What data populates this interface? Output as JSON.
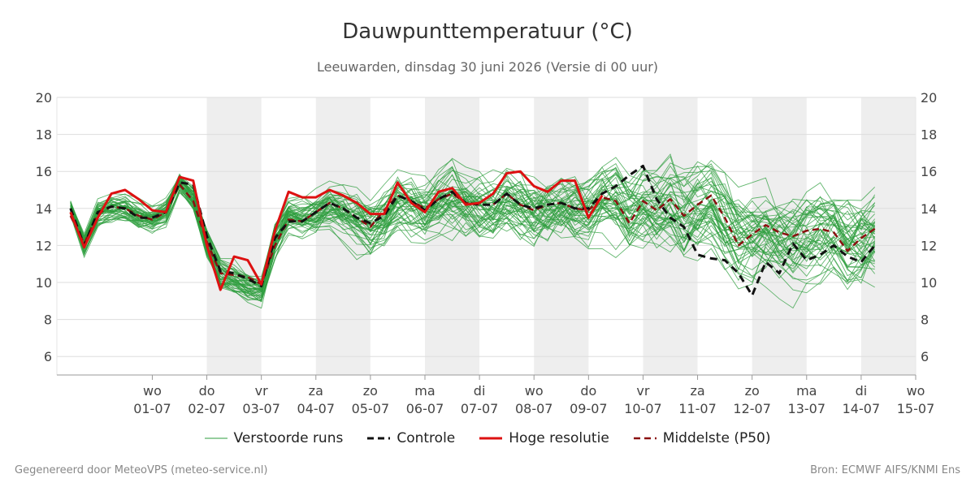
{
  "chart_data": {
    "type": "line",
    "title": "Dauwpunttemperatuur (°C)",
    "subtitle": "Leeuwarden, dinsdag 30 juni 2026 (Versie di 00 uur)",
    "ylim": [
      5,
      20
    ],
    "y_ticks": [
      6,
      8,
      10,
      12,
      14,
      16,
      18,
      20
    ],
    "x_range_days": [
      -1.75,
      14.0
    ],
    "grid": true,
    "legend_position": "bottom",
    "x_day_labels": [
      {
        "day": "wo",
        "date": "01-07"
      },
      {
        "day": "do",
        "date": "02-07"
      },
      {
        "day": "vr",
        "date": "03-07"
      },
      {
        "day": "za",
        "date": "04-07"
      },
      {
        "day": "zo",
        "date": "05-07"
      },
      {
        "day": "ma",
        "date": "06-07"
      },
      {
        "day": "di",
        "date": "07-07"
      },
      {
        "day": "wo",
        "date": "08-07"
      },
      {
        "day": "do",
        "date": "09-07"
      },
      {
        "day": "vr",
        "date": "10-07"
      },
      {
        "day": "za",
        "date": "11-07"
      },
      {
        "day": "zo",
        "date": "12-07"
      },
      {
        "day": "ma",
        "date": "13-07"
      },
      {
        "day": "di",
        "date": "14-07"
      },
      {
        "day": "wo",
        "date": "15-07"
      }
    ],
    "shaded_days": [
      "02-07",
      "04-07",
      "06-07",
      "08-07",
      "10-07",
      "12-07",
      "14-07"
    ],
    "series": [
      {
        "name": "Controle",
        "color": "#111111",
        "style": "dashed",
        "x_start": -1.5,
        "x_step": 0.25,
        "values": [
          14.0,
          12.0,
          13.8,
          14.1,
          14.0,
          13.5,
          13.5,
          13.8,
          15.4,
          15.3,
          12.5,
          10.6,
          10.5,
          10.2,
          9.8,
          12.4,
          13.3,
          13.3,
          13.8,
          14.3,
          14.0,
          13.5,
          13.2,
          13.6,
          14.7,
          14.4,
          13.9,
          14.5,
          14.9,
          14.3,
          14.2,
          14.2,
          14.8,
          14.2,
          14.0,
          14.2,
          14.3,
          14.0,
          14.0,
          14.8,
          15.2,
          15.8,
          16.3,
          14.5,
          13.5,
          13.0,
          11.5,
          11.3,
          11.2,
          10.5,
          9.3,
          11.1,
          10.5,
          12.1,
          11.2,
          11.5,
          12.0,
          11.4,
          11.1,
          12.0
        ]
      },
      {
        "name": "Hoge resolutie",
        "color": "#dd1111",
        "style": "solid",
        "x_start": -1.5,
        "x_step": 0.25,
        "values": [
          13.8,
          11.9,
          13.5,
          14.8,
          15.0,
          14.5,
          13.9,
          13.8,
          15.7,
          15.5,
          12.0,
          9.6,
          11.4,
          11.2,
          9.9,
          12.8,
          14.9,
          14.6,
          14.6,
          15.0,
          14.7,
          14.3,
          13.7,
          13.7,
          15.4,
          14.3,
          13.8,
          14.9,
          15.1,
          14.2,
          14.3,
          14.8,
          15.9,
          16.0,
          15.2,
          14.9,
          15.5,
          15.5,
          13.5,
          14.7
        ]
      },
      {
        "name": "Middelste (P50)",
        "color": "#8b1010",
        "style": "dashed",
        "x_start": -1.5,
        "x_step": 0.25,
        "values": [
          13.6,
          12.1,
          13.7,
          14.1,
          14.0,
          13.6,
          13.4,
          13.8,
          15.3,
          14.4,
          12.2,
          10.5,
          10.4,
          10.3,
          9.9,
          12.0,
          13.4,
          13.3,
          13.8,
          14.3,
          14.0,
          13.5,
          13.0,
          13.9,
          14.7,
          14.4,
          14.0,
          14.5,
          14.8,
          14.3,
          14.2,
          14.2,
          14.8,
          14.2,
          13.9,
          14.2,
          14.3,
          14.0,
          13.9,
          14.6,
          14.4,
          13.2,
          14.4,
          13.9,
          14.5,
          13.6,
          14.2,
          14.7,
          13.5,
          12.0,
          12.6,
          13.1,
          12.7,
          12.5,
          12.8,
          12.9,
          12.7,
          11.7,
          12.4,
          12.9
        ]
      }
    ],
    "ensemble": {
      "name": "Verstoorde runs",
      "color": "#2e9e3e",
      "members": 50,
      "x_start": -1.5,
      "x_step": 0.25,
      "anchor_values": [
        14.0,
        12.0,
        13.7,
        14.0,
        14.0,
        13.6,
        13.4,
        13.8,
        15.4,
        14.6,
        12.2,
        10.4,
        10.2,
        9.8,
        9.6,
        12.3,
        13.6,
        13.5,
        13.6,
        14.0,
        13.7,
        13.4,
        13.0,
        13.4,
        14.4,
        14.1,
        13.7,
        14.2,
        14.4,
        14.0,
        13.9,
        13.9,
        14.4,
        14.1,
        13.8,
        14.0,
        14.1,
        13.9,
        13.8,
        14.2,
        14.1,
        13.4,
        14.0,
        13.7,
        14.0,
        13.4,
        13.7,
        13.8,
        13.0,
        12.3,
        12.5,
        12.7,
        12.5,
        12.4,
        12.6,
        12.6,
        12.5,
        12.1,
        12.4,
        12.6
      ],
      "spread_values": [
        0.6,
        0.8,
        0.9,
        0.9,
        0.9,
        0.9,
        0.9,
        0.9,
        0.6,
        0.8,
        1.0,
        1.0,
        1.0,
        1.0,
        1.0,
        1.2,
        1.1,
        1.2,
        1.4,
        1.6,
        1.8,
        2.0,
        2.1,
        2.2,
        2.1,
        2.1,
        2.1,
        2.2,
        2.3,
        2.3,
        2.3,
        2.3,
        2.4,
        2.4,
        2.4,
        2.5,
        2.5,
        2.6,
        2.6,
        2.6,
        2.7,
        2.7,
        2.8,
        2.8,
        2.8,
        2.9,
        2.9,
        2.9,
        3.0,
        3.0,
        3.0,
        3.0,
        3.0,
        3.1,
        3.1,
        3.1,
        3.1,
        3.2,
        3.2,
        3.2
      ]
    },
    "legend": [
      {
        "label": "Verstoorde runs",
        "color": "#2e9e3e",
        "style": "thin"
      },
      {
        "label": "Controle",
        "color": "#111111",
        "style": "dashed"
      },
      {
        "label": "Hoge resolutie",
        "color": "#dd1111",
        "style": "solid"
      },
      {
        "label": "Middelste (P50)",
        "color": "#8b1010",
        "style": "dashed"
      }
    ]
  },
  "footer": {
    "left": "Gegenereerd door MeteoVPS (meteo-service.nl)",
    "right": "Bron: ECMWF AIFS/KNMI Ens"
  }
}
